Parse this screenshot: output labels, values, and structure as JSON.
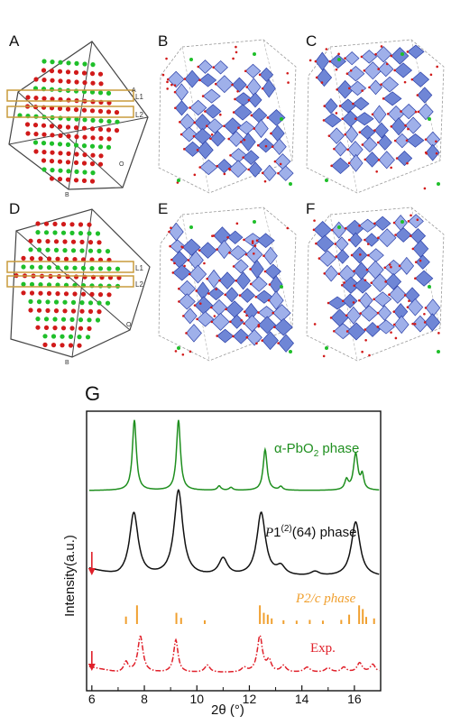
{
  "panels": {
    "a": "A",
    "b": "B",
    "c": "C",
    "d": "D",
    "e": "E",
    "f": "F",
    "g": "G"
  },
  "structure_labels": {
    "l1": "L1",
    "l2": "L2",
    "origin": "O",
    "axis_a": "A",
    "axis_b": "B"
  },
  "colors": {
    "green_atom": "#1fbf2a",
    "red_atom": "#d11a1a",
    "band": "#c89b3c",
    "polyhedron": "#6f86d6",
    "polyhedron_dark": "#2a3fa8",
    "green_curve": "#1f8f1f",
    "black_curve": "#111111",
    "orange_sticks": "#f0a030",
    "exp_red": "#e0202a"
  },
  "chart_data": {
    "type": "line",
    "panel": "G",
    "xlabel_prefix": "2θ (",
    "xlabel_unit": "°",
    "xlabel_suffix": ")",
    "ylabel": "Intensity(a.u.)",
    "xlim": [
      5.8,
      17.0
    ],
    "xticks": [
      "6",
      "8",
      "10",
      "12",
      "14",
      "16"
    ],
    "arrow_x": 6.0,
    "series": [
      {
        "name": "α-PbO2 phase",
        "name_parts": [
          "α-PbO",
          "2",
          " phase"
        ],
        "color": "#1f8f1f",
        "style": "solid",
        "peaks": [
          {
            "x": 7.62,
            "h": 1.0,
            "w": 0.09
          },
          {
            "x": 9.3,
            "h": 1.0,
            "w": 0.09
          },
          {
            "x": 10.85,
            "h": 0.06,
            "w": 0.08
          },
          {
            "x": 11.3,
            "h": 0.04,
            "w": 0.08
          },
          {
            "x": 12.6,
            "h": 0.58,
            "w": 0.09
          },
          {
            "x": 13.2,
            "h": 0.05,
            "w": 0.08
          },
          {
            "x": 15.7,
            "h": 0.14,
            "w": 0.08
          },
          {
            "x": 16.05,
            "h": 0.52,
            "w": 0.1
          },
          {
            "x": 16.3,
            "h": 0.2,
            "w": 0.07
          }
        ]
      },
      {
        "name": "P1(2)(64) phase",
        "name_parts": [
          "P",
          "1",
          "(2)",
          "(64) phase"
        ],
        "color": "#111111",
        "style": "solid",
        "peaks": [
          {
            "x": 7.6,
            "h": 0.74,
            "w": 0.2
          },
          {
            "x": 9.3,
            "h": 1.0,
            "w": 0.2
          },
          {
            "x": 11.0,
            "h": 0.2,
            "w": 0.2
          },
          {
            "x": 12.45,
            "h": 0.74,
            "w": 0.2
          },
          {
            "x": 13.2,
            "h": 0.1,
            "w": 0.2
          },
          {
            "x": 14.5,
            "h": 0.05,
            "w": 0.2
          },
          {
            "x": 16.05,
            "h": 0.64,
            "w": 0.2
          }
        ]
      },
      {
        "name": "P2/c phase",
        "color": "#f0a030",
        "style": "sticks",
        "sticks": [
          {
            "x": 7.3,
            "h": 0.4
          },
          {
            "x": 7.72,
            "h": 1.0
          },
          {
            "x": 9.22,
            "h": 0.6
          },
          {
            "x": 9.4,
            "h": 0.33
          },
          {
            "x": 10.3,
            "h": 0.2
          },
          {
            "x": 12.4,
            "h": 1.0
          },
          {
            "x": 12.55,
            "h": 0.6
          },
          {
            "x": 12.7,
            "h": 0.5
          },
          {
            "x": 12.85,
            "h": 0.3
          },
          {
            "x": 13.3,
            "h": 0.2
          },
          {
            "x": 13.8,
            "h": 0.18
          },
          {
            "x": 14.3,
            "h": 0.22
          },
          {
            "x": 14.8,
            "h": 0.18
          },
          {
            "x": 15.5,
            "h": 0.22
          },
          {
            "x": 15.8,
            "h": 0.5
          },
          {
            "x": 16.18,
            "h": 1.0
          },
          {
            "x": 16.32,
            "h": 0.8
          },
          {
            "x": 16.45,
            "h": 0.38
          },
          {
            "x": 16.75,
            "h": 0.3
          }
        ]
      },
      {
        "name": "Exp.",
        "color": "#e0202a",
        "style": "dashdot",
        "peaks": [
          {
            "x": 7.3,
            "h": 0.28,
            "w": 0.1
          },
          {
            "x": 7.85,
            "h": 1.0,
            "w": 0.12
          },
          {
            "x": 9.2,
            "h": 0.9,
            "w": 0.1
          },
          {
            "x": 10.4,
            "h": 0.2,
            "w": 0.12
          },
          {
            "x": 11.8,
            "h": 0.12,
            "w": 0.12
          },
          {
            "x": 12.4,
            "h": 1.0,
            "w": 0.12
          },
          {
            "x": 12.75,
            "h": 0.3,
            "w": 0.1
          },
          {
            "x": 13.3,
            "h": 0.18,
            "w": 0.12
          },
          {
            "x": 14.2,
            "h": 0.14,
            "w": 0.14
          },
          {
            "x": 15.0,
            "h": 0.12,
            "w": 0.14
          },
          {
            "x": 15.6,
            "h": 0.14,
            "w": 0.12
          },
          {
            "x": 16.2,
            "h": 0.26,
            "w": 0.12
          },
          {
            "x": 16.7,
            "h": 0.22,
            "w": 0.12
          }
        ]
      }
    ]
  }
}
